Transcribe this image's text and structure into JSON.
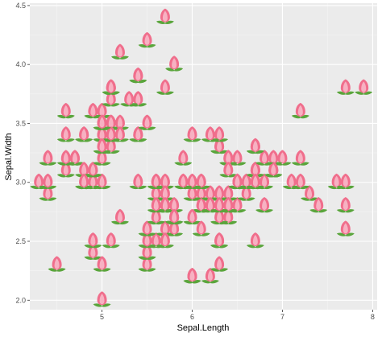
{
  "chart_data": {
    "type": "scatter",
    "title": "",
    "xlabel": "Sepal.Length",
    "ylabel": "Sepal.Width",
    "xlim": [
      4.2,
      8.05
    ],
    "ylim": [
      1.92,
      4.52
    ],
    "x_ticks": [
      5,
      6,
      7,
      8
    ],
    "y_ticks": [
      2.0,
      2.5,
      3.0,
      3.5,
      4.0,
      4.5
    ],
    "x_tick_labels": [
      "5",
      "6",
      "7",
      "8"
    ],
    "y_tick_labels": [
      "2.0",
      "2.5",
      "3.0",
      "3.5",
      "4.0",
      "4.5"
    ],
    "grid": true,
    "marker": "tulip-icon",
    "colors": {
      "panel_background": "#ebebeb",
      "grid_major": "#ffffff",
      "grid_minor": "#f5f5f5",
      "petal": "#f06e8c",
      "petal_light": "#f7b1c2",
      "leaf": "#5aa53c"
    },
    "points": [
      [
        5.1,
        3.5
      ],
      [
        4.9,
        3.0
      ],
      [
        4.7,
        3.2
      ],
      [
        4.6,
        3.1
      ],
      [
        5.0,
        3.6
      ],
      [
        5.4,
        3.9
      ],
      [
        4.6,
        3.4
      ],
      [
        5.0,
        3.4
      ],
      [
        4.4,
        2.9
      ],
      [
        4.9,
        3.1
      ],
      [
        5.4,
        3.7
      ],
      [
        4.8,
        3.4
      ],
      [
        4.8,
        3.0
      ],
      [
        4.3,
        3.0
      ],
      [
        5.8,
        4.0
      ],
      [
        5.7,
        4.4
      ],
      [
        5.4,
        3.9
      ],
      [
        5.1,
        3.5
      ],
      [
        5.7,
        3.8
      ],
      [
        5.1,
        3.8
      ],
      [
        5.4,
        3.4
      ],
      [
        5.1,
        3.7
      ],
      [
        4.6,
        3.6
      ],
      [
        5.1,
        3.3
      ],
      [
        4.8,
        3.4
      ],
      [
        5.0,
        3.0
      ],
      [
        5.0,
        3.4
      ],
      [
        5.2,
        3.5
      ],
      [
        5.2,
        3.4
      ],
      [
        4.7,
        3.2
      ],
      [
        4.8,
        3.1
      ],
      [
        5.4,
        3.4
      ],
      [
        5.2,
        4.1
      ],
      [
        5.5,
        4.2
      ],
      [
        4.9,
        3.1
      ],
      [
        5.0,
        3.2
      ],
      [
        5.5,
        3.5
      ],
      [
        4.9,
        3.6
      ],
      [
        4.4,
        3.0
      ],
      [
        5.1,
        3.4
      ],
      [
        5.0,
        3.5
      ],
      [
        4.5,
        2.3
      ],
      [
        4.4,
        3.2
      ],
      [
        5.0,
        3.5
      ],
      [
        5.1,
        3.8
      ],
      [
        4.8,
        3.0
      ],
      [
        5.1,
        3.8
      ],
      [
        4.6,
        3.2
      ],
      [
        5.3,
        3.7
      ],
      [
        5.0,
        3.3
      ],
      [
        7.0,
        3.2
      ],
      [
        6.4,
        3.2
      ],
      [
        6.9,
        3.1
      ],
      [
        5.5,
        2.3
      ],
      [
        6.5,
        2.8
      ],
      [
        5.7,
        2.8
      ],
      [
        6.3,
        3.3
      ],
      [
        4.9,
        2.4
      ],
      [
        6.6,
        2.9
      ],
      [
        5.2,
        2.7
      ],
      [
        5.0,
        2.0
      ],
      [
        5.9,
        3.0
      ],
      [
        6.0,
        2.2
      ],
      [
        6.1,
        2.9
      ],
      [
        5.6,
        2.9
      ],
      [
        6.7,
        3.1
      ],
      [
        5.6,
        3.0
      ],
      [
        5.8,
        2.7
      ],
      [
        6.2,
        2.2
      ],
      [
        5.6,
        2.5
      ],
      [
        5.9,
        3.2
      ],
      [
        6.1,
        2.8
      ],
      [
        6.3,
        2.5
      ],
      [
        6.1,
        2.8
      ],
      [
        6.4,
        2.9
      ],
      [
        6.6,
        3.0
      ],
      [
        6.8,
        2.8
      ],
      [
        6.7,
        3.0
      ],
      [
        6.0,
        2.9
      ],
      [
        5.7,
        2.6
      ],
      [
        5.5,
        2.4
      ],
      [
        5.5,
        2.4
      ],
      [
        5.8,
        2.7
      ],
      [
        6.0,
        2.7
      ],
      [
        5.4,
        3.0
      ],
      [
        6.0,
        3.4
      ],
      [
        6.7,
        3.1
      ],
      [
        6.3,
        2.3
      ],
      [
        5.6,
        3.0
      ],
      [
        5.5,
        2.5
      ],
      [
        5.5,
        2.6
      ],
      [
        6.1,
        3.0
      ],
      [
        5.8,
        2.6
      ],
      [
        5.0,
        2.3
      ],
      [
        5.6,
        2.7
      ],
      [
        5.7,
        3.0
      ],
      [
        5.7,
        2.9
      ],
      [
        6.2,
        2.9
      ],
      [
        5.1,
        2.5
      ],
      [
        5.7,
        2.8
      ],
      [
        6.3,
        3.3
      ],
      [
        5.8,
        2.7
      ],
      [
        7.1,
        3.0
      ],
      [
        6.3,
        2.9
      ],
      [
        6.5,
        3.0
      ],
      [
        7.6,
        3.0
      ],
      [
        4.9,
        2.5
      ],
      [
        7.3,
        2.9
      ],
      [
        6.7,
        2.5
      ],
      [
        7.2,
        3.6
      ],
      [
        6.5,
        3.2
      ],
      [
        6.4,
        2.7
      ],
      [
        6.8,
        3.0
      ],
      [
        5.7,
        2.5
      ],
      [
        5.8,
        2.8
      ],
      [
        6.4,
        3.2
      ],
      [
        6.5,
        3.0
      ],
      [
        7.7,
        3.8
      ],
      [
        7.7,
        2.6
      ],
      [
        6.0,
        2.2
      ],
      [
        6.9,
        3.2
      ],
      [
        5.6,
        2.8
      ],
      [
        7.7,
        2.8
      ],
      [
        6.3,
        2.7
      ],
      [
        6.7,
        3.3
      ],
      [
        7.2,
        3.2
      ],
      [
        6.2,
        2.8
      ],
      [
        6.1,
        3.0
      ],
      [
        6.4,
        2.8
      ],
      [
        7.2,
        3.0
      ],
      [
        7.4,
        2.8
      ],
      [
        7.9,
        3.8
      ],
      [
        6.4,
        2.8
      ],
      [
        6.3,
        2.8
      ],
      [
        6.1,
        2.6
      ],
      [
        7.7,
        3.0
      ],
      [
        6.3,
        3.4
      ],
      [
        6.4,
        3.1
      ],
      [
        6.0,
        3.0
      ],
      [
        6.9,
        3.1
      ],
      [
        6.7,
        3.1
      ],
      [
        6.9,
        3.1
      ],
      [
        5.8,
        2.7
      ],
      [
        6.8,
        3.2
      ],
      [
        6.7,
        3.3
      ],
      [
        6.7,
        3.0
      ],
      [
        6.3,
        2.5
      ],
      [
        6.5,
        3.0
      ],
      [
        6.2,
        3.4
      ],
      [
        5.9,
        3.0
      ]
    ]
  }
}
